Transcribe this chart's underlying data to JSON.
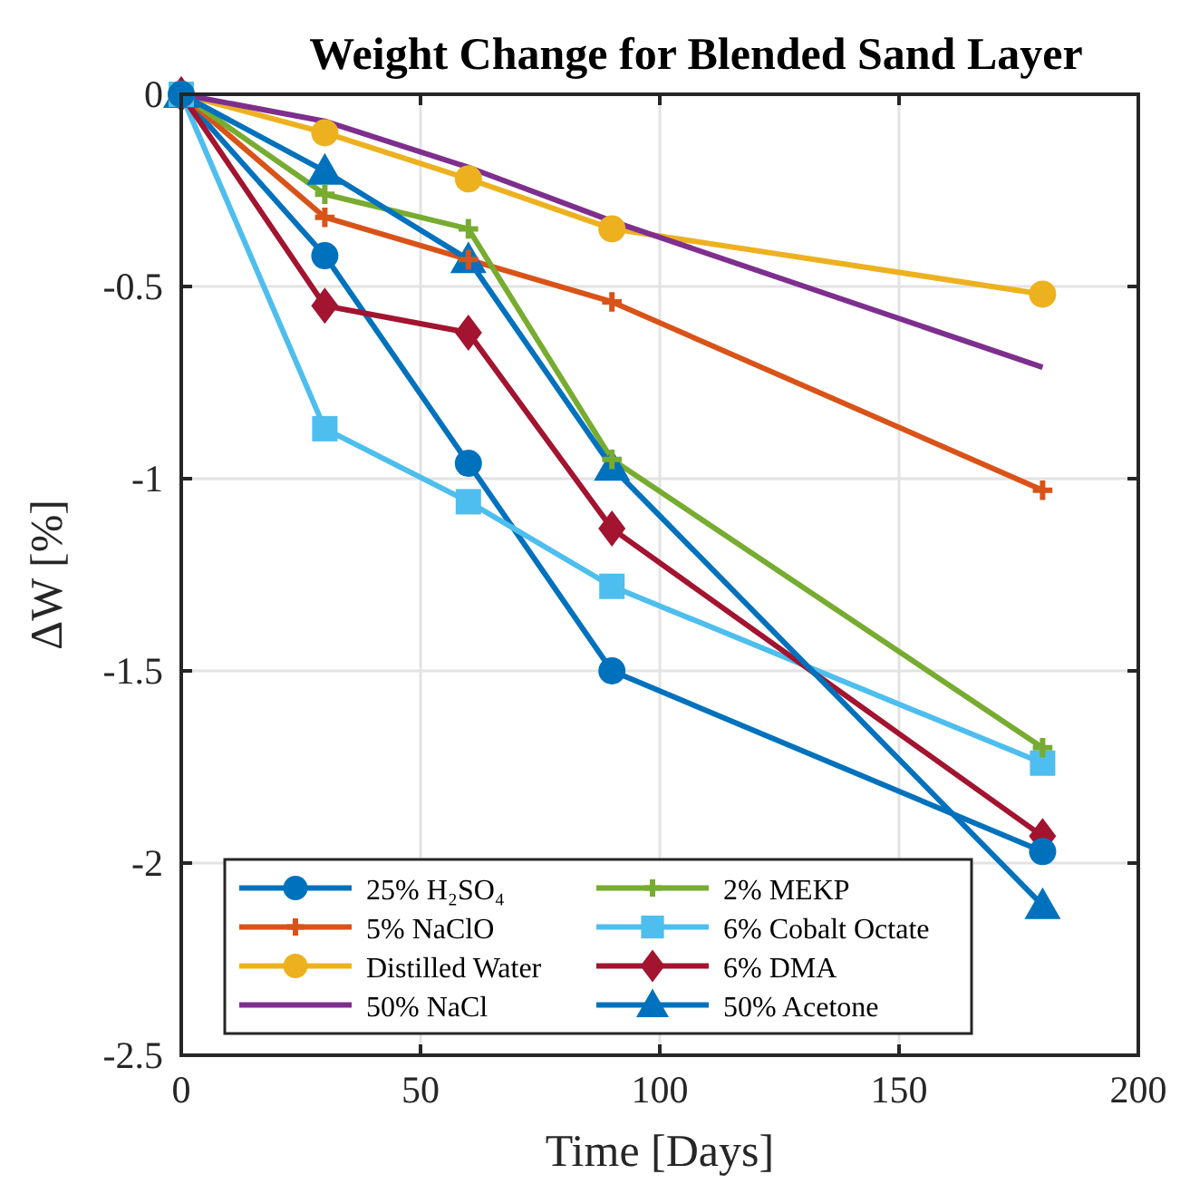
{
  "chart_data": {
    "type": "line",
    "title": "Weight Change for Blended Sand Layer",
    "xlabel": "Time [Days]",
    "ylabel": "ΔW [%]",
    "x": [
      0,
      30,
      60,
      90,
      180
    ],
    "xlim": [
      0,
      200
    ],
    "xticks": [
      0,
      50,
      100,
      150,
      200
    ],
    "ylim": [
      -2.5,
      0
    ],
    "yticks": [
      -2.5,
      -2,
      -1.5,
      -1,
      -0.5,
      0
    ],
    "grid": true,
    "legend": "bottom left",
    "line_style": "solid",
    "series": [
      {
        "name": "25% H₂SO₄",
        "color": "#0072bd",
        "marker": "circle",
        "values": [
          0,
          -0.42,
          -0.96,
          -1.5,
          -1.97
        ]
      },
      {
        "name": "5% NaClO",
        "color": "#d95319",
        "marker": "cross",
        "values": [
          0,
          -0.32,
          -0.43,
          -0.54,
          -1.03
        ]
      },
      {
        "name": "Distilled Water",
        "color": "#edb120",
        "marker": "circle",
        "values": [
          0,
          -0.1,
          -0.22,
          -0.35,
          -0.52
        ]
      },
      {
        "name": "50% NaCl",
        "color": "#7e2f8e",
        "marker": "none",
        "values": [
          0,
          -0.07,
          -0.19,
          -0.33,
          -0.71
        ]
      },
      {
        "name": "2% MEKP",
        "color": "#77ac30",
        "marker": "cross",
        "values": [
          0,
          -0.26,
          -0.35,
          -0.95,
          -1.7
        ]
      },
      {
        "name": "6% Cobalt Octate",
        "color": "#4dbeee",
        "marker": "square",
        "values": [
          0,
          -0.87,
          -1.06,
          -1.28,
          -1.74
        ]
      },
      {
        "name": "6% DMA",
        "color": "#a2142f",
        "marker": "diamond",
        "values": [
          0,
          -0.55,
          -0.62,
          -1.13,
          -1.93
        ]
      },
      {
        "name": "50% Acetone",
        "color": "#0072bd",
        "marker": "triangle",
        "values": [
          0,
          -0.2,
          -0.43,
          -0.97,
          -2.11
        ]
      }
    ]
  }
}
